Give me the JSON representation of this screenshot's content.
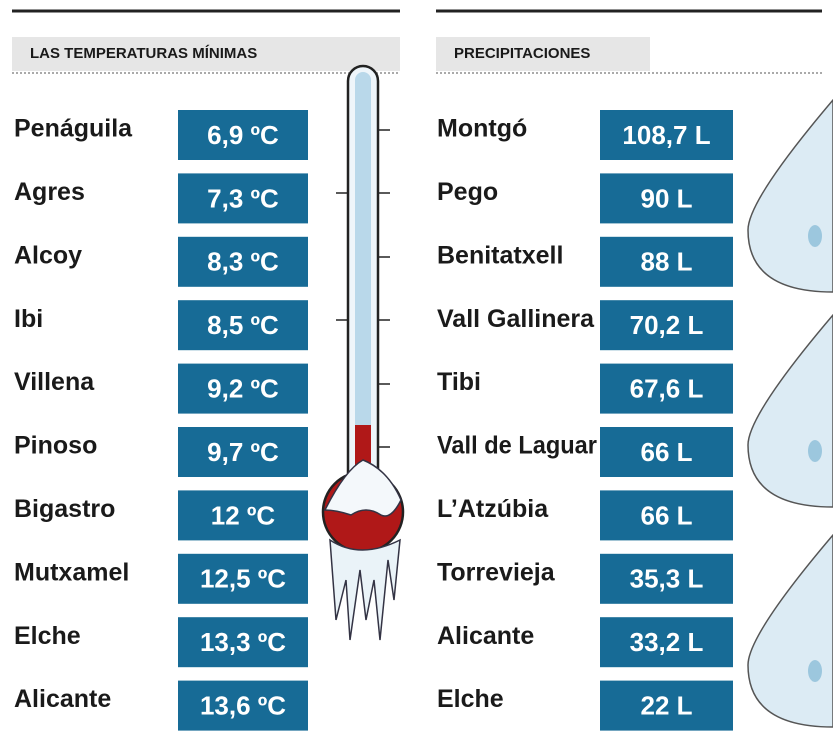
{
  "temperatures": {
    "title": "LAS TEMPERATURAS MÍNIMAS",
    "rows": [
      [
        "Penáguila",
        "6,9 ºC"
      ],
      [
        "Agres",
        "7,3 ºC"
      ],
      [
        "Alcoy",
        "8,3 ºC"
      ],
      [
        "Ibi",
        "8,5 ºC"
      ],
      [
        "Villena",
        "9,2 ºC"
      ],
      [
        "Pinoso",
        "9,7 ºC"
      ],
      [
        "Bigastro",
        "12 ºC"
      ],
      [
        "Mutxamel",
        "12,5 ºC"
      ],
      [
        "Elche",
        "13,3 ºC"
      ],
      [
        "Alicante",
        "13,6 ºC"
      ]
    ]
  },
  "precipitation": {
    "title": "PRECIPITACIONES",
    "rows": [
      [
        "Montgó",
        "108,7 L"
      ],
      [
        "Pego",
        "90 L"
      ],
      [
        "Benitatxell",
        "88 L"
      ],
      [
        "Vall Gallinera",
        "70,2 L"
      ],
      [
        "Tibi",
        "67,6 L"
      ],
      [
        "Vall de Laguar",
        "66 L"
      ],
      [
        "L’Atzúbia",
        "66 L"
      ],
      [
        "Torrevieja",
        "35,3 L"
      ],
      [
        "Alicante",
        "33,2 L"
      ],
      [
        "Elche",
        "22 L"
      ]
    ]
  }
}
